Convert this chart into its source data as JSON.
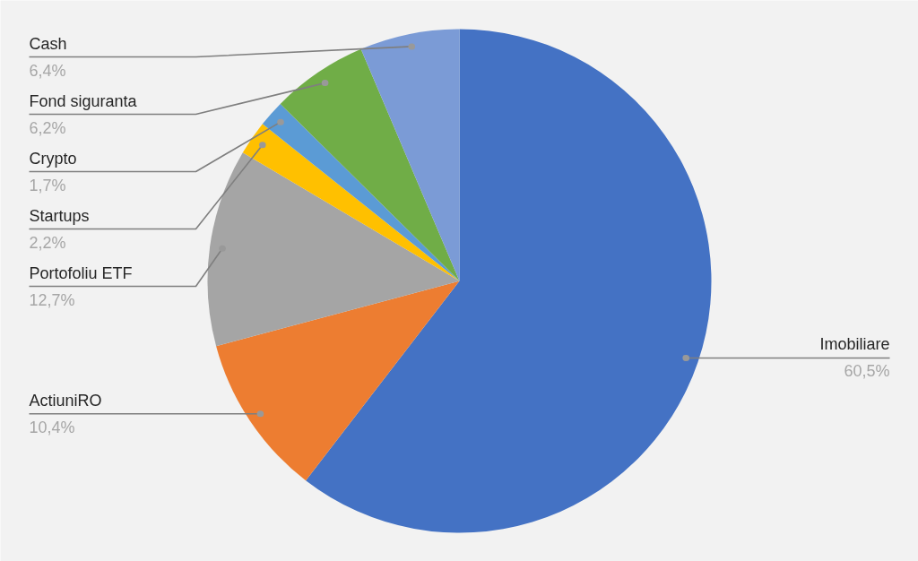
{
  "chart_data": {
    "type": "pie",
    "categories": [
      "Imobiliare",
      "ActiuniRO",
      "Portofoliu ETF",
      "Startups",
      "Crypto",
      "Fond siguranta",
      "Cash"
    ],
    "values": [
      60.5,
      10.4,
      12.7,
      2.2,
      1.7,
      6.2,
      6.4
    ],
    "colors": [
      "#4472c4",
      "#ed7d31",
      "#a5a5a5",
      "#ffc000",
      "#5b9bd5",
      "#70ad47",
      "#7b9bd6"
    ],
    "value_labels": [
      "60,5%",
      "10,4%",
      "12,7%",
      "2,2%",
      "1,7%",
      "6,2%",
      "6,4%"
    ]
  }
}
